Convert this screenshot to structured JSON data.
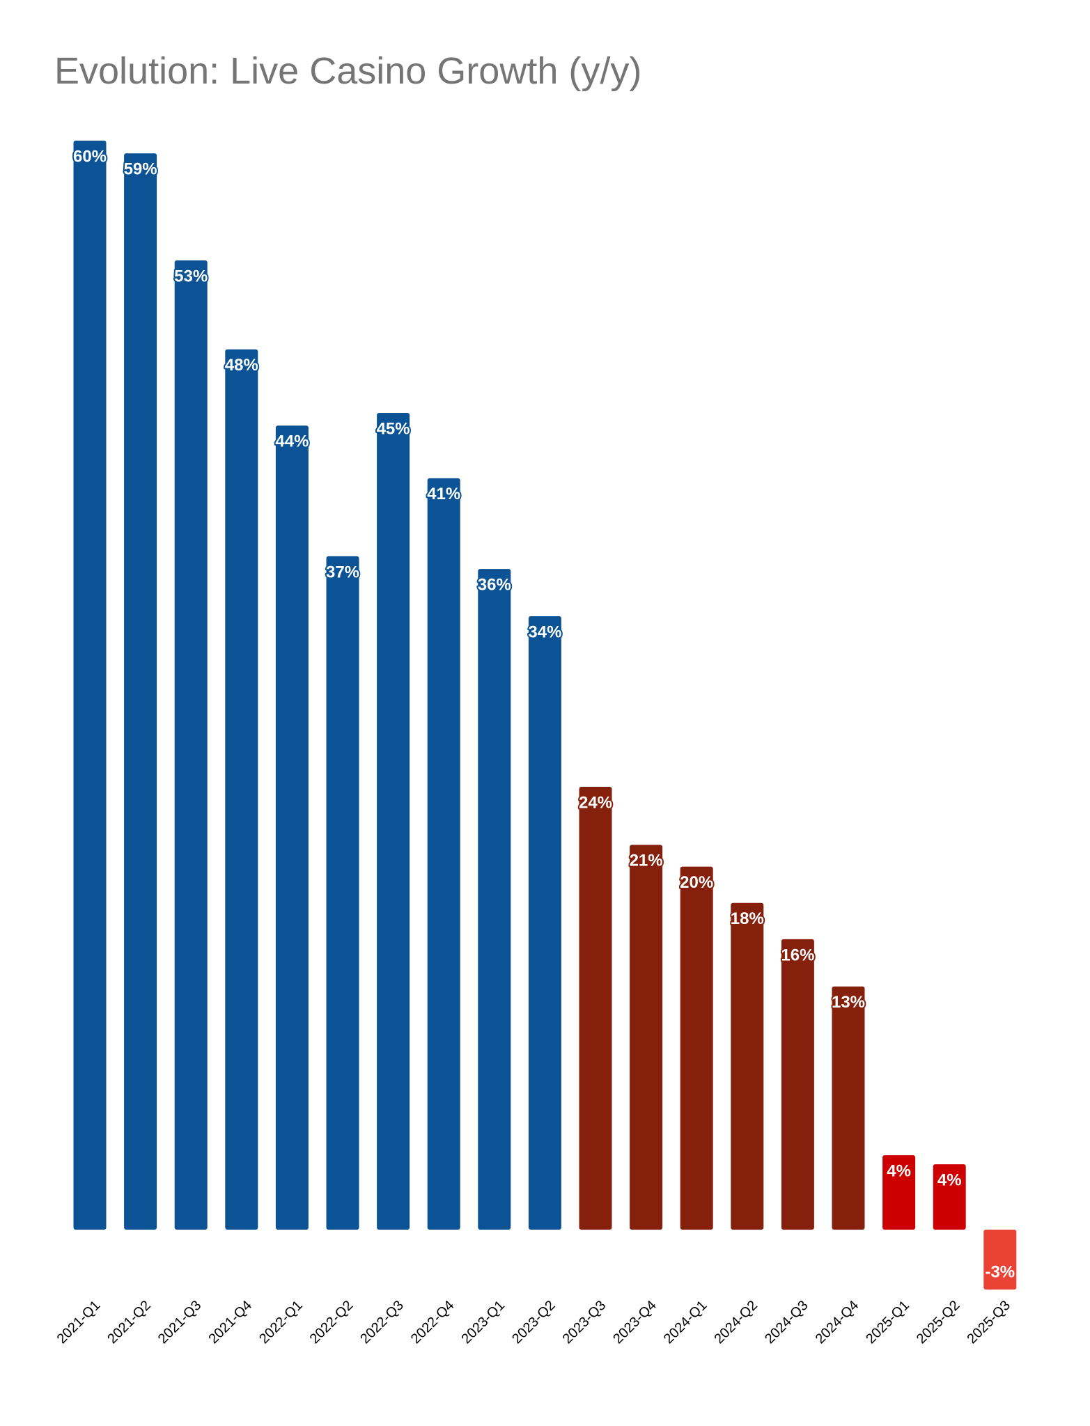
{
  "chart_data": {
    "type": "bar",
    "title": "Evolution: Live Casino Growth (y/y)",
    "categories": [
      "2021-Q1",
      "2021-Q2",
      "2021-Q3",
      "2021-Q4",
      "2022-Q1",
      "2022-Q2",
      "2022-Q3",
      "2022-Q4",
      "2023-Q1",
      "2023-Q2",
      "2023-Q3",
      "2023-Q4",
      "2024-Q1",
      "2024-Q2",
      "2024-Q3",
      "2024-Q4",
      "2025-Q1",
      "2025-Q2",
      "2025-Q3"
    ],
    "values": [
      60,
      59.3,
      53.4,
      48.5,
      44.3,
      37.1,
      45,
      41.4,
      36.4,
      33.8,
      24.4,
      21.2,
      20,
      18,
      16,
      13.4,
      4.1,
      3.6,
      -3.3
    ],
    "value_labels": [
      "60%",
      "59%",
      "53%",
      "48%",
      "44%",
      "37%",
      "45%",
      "41%",
      "36%",
      "34%",
      "24%",
      "21%",
      "20%",
      "18%",
      "16%",
      "13%",
      "4%",
      "4%",
      "-3%"
    ],
    "colors": [
      "#0b5394",
      "#0b5394",
      "#0b5394",
      "#0b5394",
      "#0b5394",
      "#0b5394",
      "#0b5394",
      "#0b5394",
      "#0b5394",
      "#0b5394",
      "#85200c",
      "#85200c",
      "#85200c",
      "#85200c",
      "#85200c",
      "#85200c",
      "#cc0000",
      "#cc0000",
      "#ea4335"
    ]
  }
}
